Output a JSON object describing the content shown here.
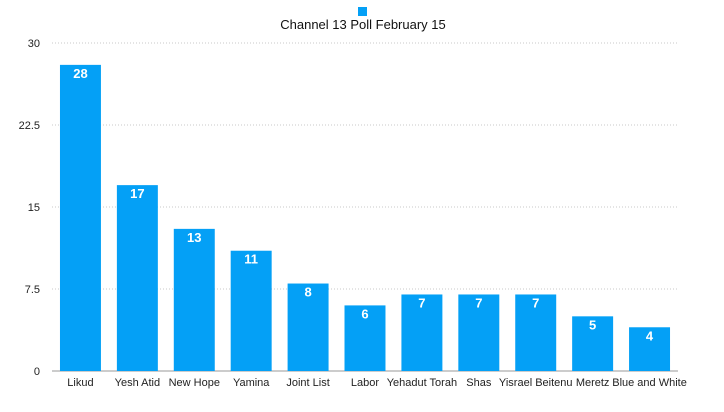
{
  "chart_data": {
    "type": "bar",
    "legend": {
      "position": "top",
      "entries": [
        "Channel 13 Poll February 15"
      ]
    },
    "series": [
      {
        "name": "Channel 13 Poll February 15",
        "color": "#04a0f6",
        "values": [
          28,
          17,
          13,
          11,
          8,
          6,
          7,
          7,
          7,
          5,
          4
        ]
      }
    ],
    "categories": [
      "Likud",
      "Yesh Atid",
      "New Hope",
      "Yamina",
      "Joint List",
      "Labor",
      "Yehadut Torah",
      "Shas",
      "Yisrael Beitenu",
      "Meretz",
      "Blue and White"
    ],
    "ylim": [
      0,
      30
    ],
    "yticks": [
      0,
      7.5,
      15,
      22.5,
      30
    ],
    "ytick_labels": [
      "0",
      "7.5",
      "15",
      "22.5",
      "30"
    ],
    "grid": true,
    "data_labels": true,
    "xlabel": "",
    "ylabel": ""
  }
}
